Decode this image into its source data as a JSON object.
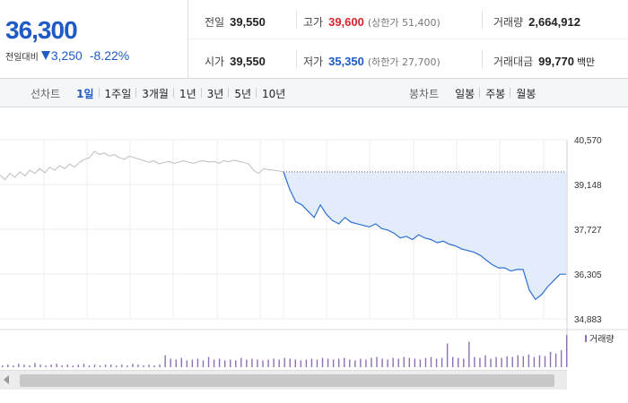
{
  "quote": {
    "price": "36,300",
    "change_label": "전일대비",
    "change_value": "3,250",
    "change_pct": "-8.22%",
    "prev_close_label": "전일",
    "prev_close": "39,550",
    "high_label": "고가",
    "high": "39,600",
    "upper_limit_note": "(상한가 51,400)",
    "volume_label": "거래량",
    "volume": "2,664,912",
    "open_label": "시가",
    "open": "39,550",
    "low_label": "저가",
    "low": "35,350",
    "lower_limit_note": "(하한가 27,700)",
    "amount_label": "거래대금",
    "amount": "99,770",
    "amount_unit": "백만"
  },
  "line_chart_toolbar": {
    "title": "선차트",
    "items": [
      "1일",
      "1주일",
      "3개월",
      "1년",
      "3년",
      "5년",
      "10년"
    ],
    "active_index": 0
  },
  "candle_chart_toolbar": {
    "title": "봉차트",
    "items": [
      "일봉",
      "주봉",
      "월봉"
    ]
  },
  "colors": {
    "accent_blue": "#1f5bc6",
    "up_red": "#d9232d",
    "line_blue": "#2f6fd1",
    "fill_blue": "#e3ecfa",
    "prev_gray": "#bdbdbd",
    "volume_purple": "#8c6fb5"
  },
  "chart_data": {
    "type": "line",
    "y_ticks": [
      "40,570",
      "39,148",
      "37,727",
      "36,305",
      "34,883"
    ],
    "ylim": [
      34883,
      40570
    ],
    "volume_legend": "거래량",
    "series": [
      {
        "values": [
          39450,
          39300,
          39500,
          39380,
          39550,
          39420,
          39600,
          39500,
          39650,
          39520,
          39700,
          39600,
          39750,
          39650,
          39800,
          39700,
          39850,
          39950,
          40000,
          40200,
          40100,
          40150,
          40050,
          40100,
          40000,
          39950,
          40050,
          40000,
          39950,
          39900,
          39850,
          39900,
          39800,
          39850,
          39880,
          39820,
          39860,
          39900,
          39850,
          39820,
          39880,
          39900,
          39860,
          39880,
          39820,
          39900,
          39870,
          39920,
          39880,
          39850,
          39800,
          39600,
          39500,
          39650,
          39620,
          39600,
          39580,
          39550
        ]
      },
      {
        "values": [
          39550,
          39000,
          38600,
          38500,
          38300,
          38100,
          38500,
          38200,
          38000,
          37900,
          38100,
          37950,
          37900,
          37850,
          37800,
          37900,
          37750,
          37700,
          37600,
          37450,
          37500,
          37400,
          37550,
          37450,
          37400,
          37300,
          37350,
          37250,
          37200,
          37100,
          37050,
          37000,
          36900,
          36750,
          36600,
          36500,
          36500,
          36400,
          36450,
          36450,
          35800,
          35500,
          35650,
          35900,
          36100,
          36300,
          36300
        ]
      }
    ],
    "volume_values": [
      2,
      3,
      2,
      4,
      3,
      2,
      5,
      3,
      2,
      3,
      4,
      2,
      3,
      2,
      3,
      4,
      2,
      3,
      2,
      3,
      3,
      2,
      3,
      2,
      4,
      3,
      2,
      3,
      2,
      3,
      14,
      10,
      9,
      11,
      8,
      9,
      10,
      8,
      12,
      9,
      10,
      8,
      9,
      8,
      11,
      9,
      10,
      9,
      8,
      9,
      10,
      9,
      11,
      10,
      9,
      8,
      9,
      10,
      9,
      11,
      10,
      9,
      10,
      11,
      9,
      8,
      10,
      9,
      11,
      12,
      10,
      9,
      11,
      10,
      12,
      11,
      10,
      9,
      11,
      12,
      10,
      11,
      28,
      12,
      11,
      10,
      30,
      12,
      11,
      14,
      10,
      12,
      11,
      13,
      12,
      14,
      13,
      15,
      12,
      14,
      13,
      18,
      16,
      20,
      38
    ]
  }
}
